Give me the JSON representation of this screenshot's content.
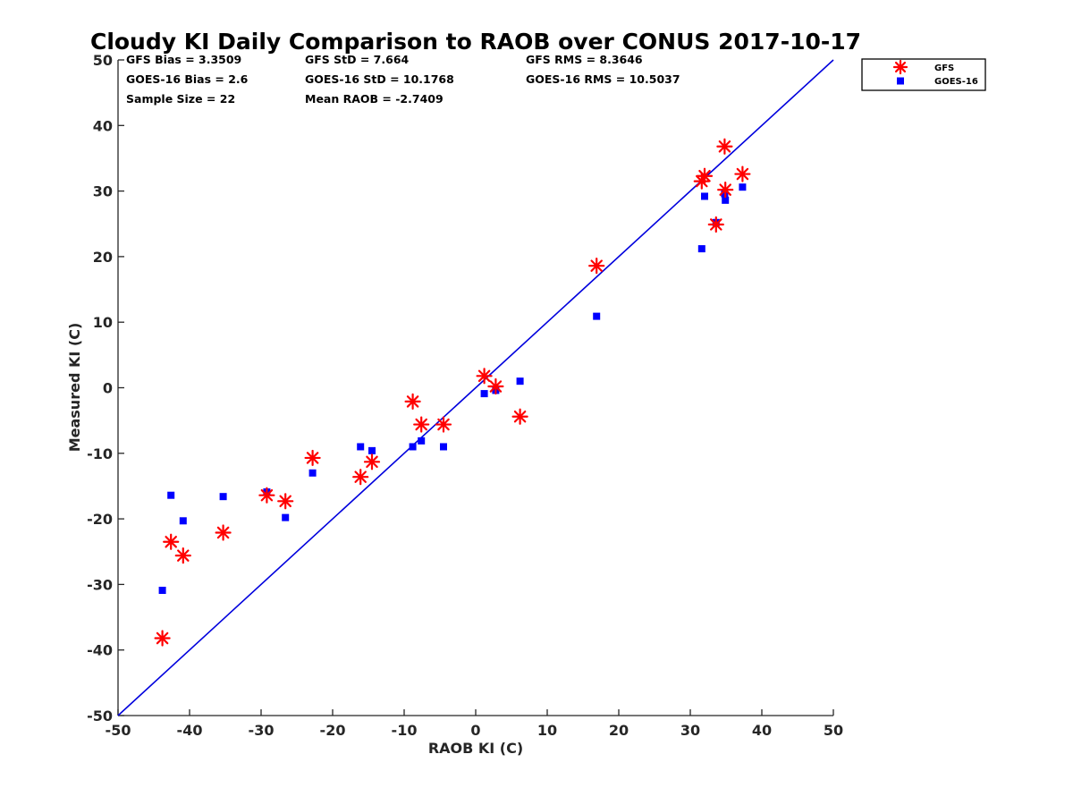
{
  "chart_data": {
    "type": "scatter",
    "title": "Cloudy KI Daily Comparison to RAOB over CONUS 2017-10-17",
    "xlabel": "RAOB KI (C)",
    "ylabel": "Measured KI (C)",
    "xlim": [
      -50,
      50
    ],
    "ylim": [
      -50,
      50
    ],
    "xticks": [
      -50,
      -40,
      -30,
      -20,
      -10,
      0,
      10,
      20,
      30,
      40,
      50
    ],
    "yticks": [
      -50,
      -40,
      -30,
      -20,
      -10,
      0,
      10,
      20,
      30,
      40,
      50
    ],
    "grid": false,
    "legend_position": "top-right (outside plot)",
    "reference_line": {
      "from": [
        -50,
        -50
      ],
      "to": [
        50,
        50
      ],
      "color": "#0000dd"
    },
    "stats": {
      "gfs_bias": "GFS Bias = 3.3509",
      "gfs_std": "GFS StD = 7.664",
      "gfs_rms": "GFS RMS = 8.3646",
      "goes_bias": "GOES-16 Bias = 2.6",
      "goes_std": "GOES-16 StD = 10.1768",
      "goes_rms": "GOES-16 RMS = 10.5037",
      "sample_size": "Sample Size = 22",
      "mean_raob": "Mean RAOB = -2.7409"
    },
    "series": [
      {
        "name": "GFS",
        "marker": "asterisk",
        "color": "#ff0000",
        "points": [
          [
            -43.8,
            -38.2
          ],
          [
            -42.6,
            -23.5
          ],
          [
            -40.9,
            -25.6
          ],
          [
            -35.3,
            -22.1
          ],
          [
            -29.2,
            -16.4
          ],
          [
            -26.6,
            -17.3
          ],
          [
            -22.8,
            -10.7
          ],
          [
            -16.1,
            -13.6
          ],
          [
            -14.5,
            -11.3
          ],
          [
            -8.8,
            -2.1
          ],
          [
            -7.6,
            -5.6
          ],
          [
            -4.5,
            -5.6
          ],
          [
            1.2,
            1.8
          ],
          [
            2.8,
            0.2
          ],
          [
            6.2,
            -4.4
          ],
          [
            16.9,
            18.6
          ],
          [
            31.6,
            31.5
          ],
          [
            32.0,
            32.3
          ],
          [
            33.6,
            24.9
          ],
          [
            34.8,
            36.8
          ],
          [
            34.9,
            30.2
          ],
          [
            37.3,
            32.6
          ]
        ]
      },
      {
        "name": "GOES-16",
        "marker": "square",
        "color": "#0000ff",
        "points": [
          [
            -43.8,
            -30.9
          ],
          [
            -42.6,
            -16.4
          ],
          [
            -40.9,
            -20.3
          ],
          [
            -35.3,
            -16.6
          ],
          [
            -29.2,
            -15.9
          ],
          [
            -26.6,
            -19.8
          ],
          [
            -22.8,
            -13.0
          ],
          [
            -16.1,
            -9.0
          ],
          [
            -14.5,
            -9.6
          ],
          [
            -8.8,
            -9.0
          ],
          [
            -7.6,
            -8.1
          ],
          [
            -4.5,
            -9.0
          ],
          [
            1.2,
            -0.9
          ],
          [
            2.8,
            -0.4
          ],
          [
            6.2,
            1.0
          ],
          [
            16.9,
            10.9
          ],
          [
            31.6,
            21.2
          ],
          [
            32.0,
            29.2
          ],
          [
            33.6,
            25.2
          ],
          [
            34.8,
            29.6
          ],
          [
            34.9,
            28.6
          ],
          [
            37.3,
            30.6
          ]
        ]
      }
    ]
  }
}
